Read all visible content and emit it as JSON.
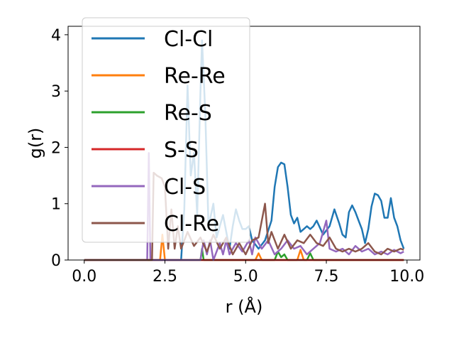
{
  "chart_data": {
    "type": "line",
    "xlabel": "r (Å)",
    "ylabel": "g(r)",
    "xlim": [
      -0.5,
      10.4
    ],
    "ylim": [
      0,
      4.15
    ],
    "xticks": [
      0.0,
      2.5,
      5.0,
      7.5,
      10.0
    ],
    "xtick_labels": [
      "0.0",
      "2.5",
      "5.0",
      "7.5",
      "10.0"
    ],
    "yticks": [
      0,
      1,
      2,
      3,
      4
    ],
    "ytick_labels": [
      "0",
      "1",
      "2",
      "3",
      "4"
    ],
    "grid": false,
    "legend_position": "upper-left",
    "series": [
      {
        "name": "Cl-Cl",
        "color": "#1f77b4",
        "points": [
          [
            0,
            0
          ],
          [
            3.0,
            0
          ],
          [
            3.1,
            0.9
          ],
          [
            3.2,
            3.1
          ],
          [
            3.3,
            1.5
          ],
          [
            3.4,
            1.9
          ],
          [
            3.5,
            0.8
          ],
          [
            3.6,
            3.0
          ],
          [
            3.65,
            3.9
          ],
          [
            3.75,
            2.6
          ],
          [
            3.85,
            0.6
          ],
          [
            4.0,
            1.0
          ],
          [
            4.1,
            0.4
          ],
          [
            4.3,
            0.8
          ],
          [
            4.5,
            0.2
          ],
          [
            4.6,
            0.6
          ],
          [
            4.7,
            0.9
          ],
          [
            4.8,
            0.7
          ],
          [
            4.9,
            0.55
          ],
          [
            5.0,
            0.55
          ],
          [
            5.1,
            0.6
          ],
          [
            5.2,
            0.35
          ],
          [
            5.4,
            0.2
          ],
          [
            5.6,
            0.35
          ],
          [
            5.8,
            0.7
          ],
          [
            5.9,
            1.3
          ],
          [
            6.0,
            1.65
          ],
          [
            6.1,
            1.73
          ],
          [
            6.2,
            1.7
          ],
          [
            6.3,
            1.3
          ],
          [
            6.4,
            0.8
          ],
          [
            6.5,
            0.65
          ],
          [
            6.6,
            0.75
          ],
          [
            6.7,
            0.5
          ],
          [
            6.8,
            0.55
          ],
          [
            6.9,
            0.6
          ],
          [
            7.0,
            0.55
          ],
          [
            7.1,
            0.6
          ],
          [
            7.2,
            0.7
          ],
          [
            7.4,
            0.45
          ],
          [
            7.6,
            0.6
          ],
          [
            7.75,
            0.9
          ],
          [
            7.9,
            0.65
          ],
          [
            8.0,
            0.45
          ],
          [
            8.1,
            0.4
          ],
          [
            8.2,
            0.85
          ],
          [
            8.3,
            0.97
          ],
          [
            8.4,
            0.85
          ],
          [
            8.5,
            0.7
          ],
          [
            8.6,
            0.55
          ],
          [
            8.7,
            0.3
          ],
          [
            8.8,
            0.55
          ],
          [
            8.9,
            0.95
          ],
          [
            9.0,
            1.18
          ],
          [
            9.1,
            1.15
          ],
          [
            9.2,
            1.05
          ],
          [
            9.3,
            0.75
          ],
          [
            9.4,
            0.75
          ],
          [
            9.5,
            1.1
          ],
          [
            9.6,
            0.75
          ],
          [
            9.7,
            0.6
          ],
          [
            9.8,
            0.35
          ],
          [
            9.9,
            0.2
          ]
        ]
      },
      {
        "name": "Re-Re",
        "color": "#ff7f0e",
        "points": [
          [
            0,
            0
          ],
          [
            2.35,
            0
          ],
          [
            2.42,
            0.45
          ],
          [
            2.5,
            0
          ],
          [
            5.3,
            0
          ],
          [
            5.4,
            0.12
          ],
          [
            5.5,
            0
          ],
          [
            6.6,
            0
          ],
          [
            6.7,
            0.18
          ],
          [
            6.8,
            0
          ],
          [
            9.9,
            0
          ]
        ]
      },
      {
        "name": "Re-S",
        "color": "#2ca02c",
        "points": [
          [
            0,
            0
          ],
          [
            3.6,
            0
          ],
          [
            3.65,
            0.2
          ],
          [
            3.7,
            0
          ],
          [
            5.9,
            0
          ],
          [
            6.0,
            0.15
          ],
          [
            6.1,
            0.05
          ],
          [
            6.2,
            0.1
          ],
          [
            6.3,
            0
          ],
          [
            6.9,
            0
          ],
          [
            7.0,
            0.12
          ],
          [
            7.1,
            0
          ],
          [
            9.9,
            0
          ]
        ]
      },
      {
        "name": "S-S",
        "color": "#d62728",
        "points": [
          [
            0,
            0
          ],
          [
            9.9,
            0
          ]
        ]
      },
      {
        "name": "Cl-S",
        "color": "#9467bd",
        "points": [
          [
            0,
            0
          ],
          [
            1.95,
            0
          ],
          [
            2.0,
            1.9
          ],
          [
            2.05,
            0
          ],
          [
            3.6,
            0
          ],
          [
            3.7,
            0.35
          ],
          [
            3.8,
            0.1
          ],
          [
            3.9,
            0.35
          ],
          [
            4.0,
            0
          ],
          [
            4.2,
            0.3
          ],
          [
            4.3,
            0.1
          ],
          [
            4.4,
            0.35
          ],
          [
            4.5,
            0.1
          ],
          [
            4.7,
            0.3
          ],
          [
            4.9,
            0.15
          ],
          [
            5.1,
            0.35
          ],
          [
            5.2,
            0.1
          ],
          [
            5.3,
            0.4
          ],
          [
            5.5,
            0.2
          ],
          [
            5.7,
            0.35
          ],
          [
            5.9,
            0.1
          ],
          [
            6.1,
            0.2
          ],
          [
            6.3,
            0.35
          ],
          [
            6.5,
            0.2
          ],
          [
            6.7,
            0.25
          ],
          [
            6.9,
            0.1
          ],
          [
            7.1,
            0.2
          ],
          [
            7.3,
            0.3
          ],
          [
            7.5,
            0.7
          ],
          [
            7.6,
            0.2
          ],
          [
            7.8,
            0.15
          ],
          [
            8.0,
            0.2
          ],
          [
            8.2,
            0.1
          ],
          [
            8.4,
            0.25
          ],
          [
            8.6,
            0.15
          ],
          [
            8.8,
            0.2
          ],
          [
            9.0,
            0.1
          ],
          [
            9.2,
            0.15
          ],
          [
            9.4,
            0.1
          ],
          [
            9.6,
            0.18
          ],
          [
            9.8,
            0.12
          ],
          [
            9.9,
            0.15
          ]
        ]
      },
      {
        "name": "Cl-Re",
        "color": "#8c564b",
        "points": [
          [
            0,
            0
          ],
          [
            2.1,
            0
          ],
          [
            2.15,
            1.55
          ],
          [
            2.25,
            1.5
          ],
          [
            2.4,
            1.45
          ],
          [
            2.5,
            1.3
          ],
          [
            2.6,
            0.2
          ],
          [
            2.7,
            0.9
          ],
          [
            2.8,
            0.2
          ],
          [
            2.9,
            0.6
          ],
          [
            3.0,
            0.2
          ],
          [
            3.2,
            0.5
          ],
          [
            3.4,
            0.25
          ],
          [
            3.6,
            0.4
          ],
          [
            3.8,
            0.15
          ],
          [
            4.0,
            0.45
          ],
          [
            4.2,
            0.2
          ],
          [
            4.4,
            0.4
          ],
          [
            4.6,
            0.1
          ],
          [
            4.8,
            0.3
          ],
          [
            5.0,
            0.1
          ],
          [
            5.2,
            0.35
          ],
          [
            5.4,
            0.4
          ],
          [
            5.6,
            1.0
          ],
          [
            5.7,
            0.3
          ],
          [
            5.8,
            0.5
          ],
          [
            6.0,
            0.2
          ],
          [
            6.2,
            0.45
          ],
          [
            6.4,
            0.2
          ],
          [
            6.6,
            0.35
          ],
          [
            6.8,
            0.3
          ],
          [
            7.0,
            0.45
          ],
          [
            7.2,
            0.3
          ],
          [
            7.4,
            0.25
          ],
          [
            7.6,
            0.4
          ],
          [
            7.8,
            0.2
          ],
          [
            8.0,
            0.15
          ],
          [
            8.2,
            0.2
          ],
          [
            8.4,
            0.15
          ],
          [
            8.6,
            0.2
          ],
          [
            8.8,
            0.3
          ],
          [
            9.0,
            0.15
          ],
          [
            9.2,
            0.1
          ],
          [
            9.4,
            0.2
          ],
          [
            9.6,
            0.15
          ],
          [
            9.8,
            0.2
          ],
          [
            9.9,
            0.18
          ]
        ]
      }
    ]
  }
}
